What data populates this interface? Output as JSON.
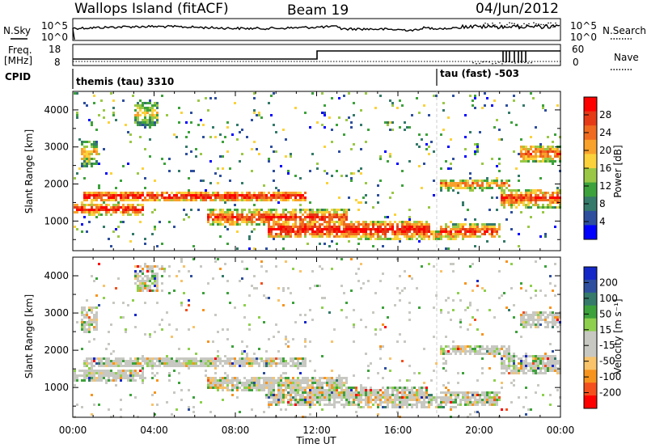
{
  "header": {
    "site": "Wallops Island (fitACF)",
    "beam": "Beam 19",
    "date": "04/Jun/2012"
  },
  "left_labels": {
    "nsky": "N.Sky",
    "freq": "Freq.",
    "mhz": "[MHz]",
    "cpid": "CPID"
  },
  "right_labels": {
    "nsearch": "N.Search",
    "nave": "Nave"
  },
  "noise_ticks": {
    "left_top": "10^5",
    "left_bot": "10^0",
    "right_top": "10^5",
    "right_bot": "10^0"
  },
  "freq_ticks": {
    "left_top": "18",
    "left_bot": "8",
    "right_top": "60",
    "right_bot": "0"
  },
  "cpid": {
    "first": "themis (tau) 3310",
    "second": "tau (fast) -503"
  },
  "colors": {
    "power": [
      "#0000ff",
      "#2e4f9e",
      "#357a6a",
      "#3da23b",
      "#9ac846",
      "#fbd23b",
      "#f8a12b",
      "#f06b1f",
      "#e63a17",
      "#ff0000"
    ],
    "velocity": [
      "#ff0000",
      "#f4501e",
      "#f7941d",
      "#f8c36a",
      "#c8c8c2",
      "#c8c8c2",
      "#8ed04d",
      "#3da23b",
      "#357a6a",
      "#2e4f9e",
      "#1428c8"
    ]
  },
  "chart_data": [
    {
      "type": "heatmap",
      "name": "power",
      "ylabel": "Slant Range [km]",
      "yticks": [
        "1000",
        "2000",
        "3000",
        "4000"
      ],
      "ylim": [
        200,
        4500
      ],
      "colorbar_label": "Power [dB]",
      "colorbar_ticks": [
        "4",
        "8",
        "12",
        "16",
        "20",
        "24",
        "28"
      ]
    },
    {
      "type": "heatmap",
      "name": "velocity",
      "ylabel": "Slant Range [km]",
      "yticks": [
        "1000",
        "2000",
        "3000",
        "4000"
      ],
      "ylim": [
        200,
        4500
      ],
      "xlabel": "Time UT",
      "xticks": [
        "00:00",
        "04:00",
        "08:00",
        "12:00",
        "16:00",
        "20:00",
        "00:00"
      ],
      "colorbar_label": "Velocity [m s⁻¹]",
      "colorbar_ticks": [
        "200",
        "100",
        "50",
        "15",
        "-15",
        "-50",
        "-100",
        "-200"
      ]
    }
  ]
}
